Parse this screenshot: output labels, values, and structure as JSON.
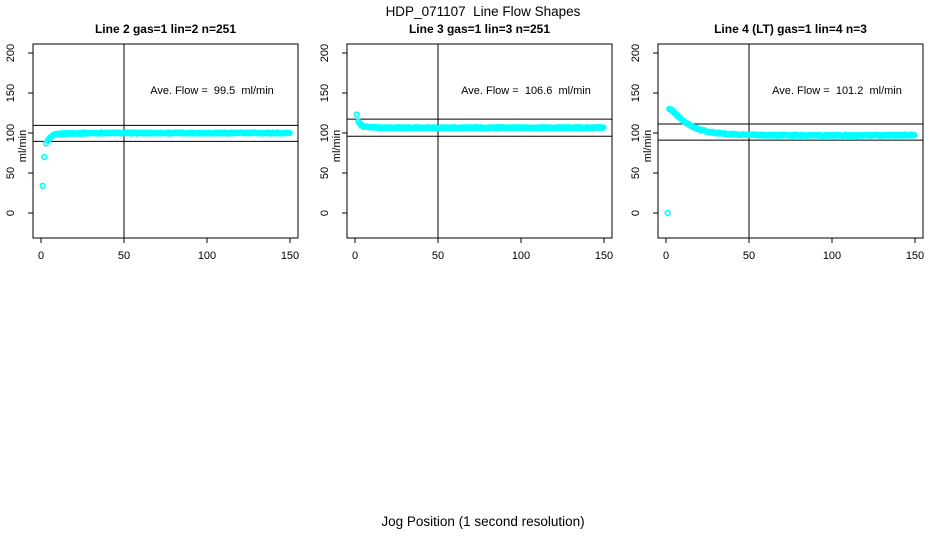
{
  "title": "HDP_071107  Line Flow Shapes",
  "xlabel": "Jog Position (1 second resolution)",
  "colors": {
    "points": "#00ffff",
    "axis": "#000000",
    "background": "#ffffff"
  },
  "chart_data": [
    {
      "type": "scatter",
      "title": "Line 2 gas=1 lin=2 n=251",
      "annotation": "Ave. Flow =  99.5  ml/min",
      "ave_flow_ml_min": 99.5,
      "ylabel": "ml/min",
      "xlim": [
        0,
        150
      ],
      "ylim": [
        0,
        200
      ],
      "xticks": [
        0,
        50,
        100,
        150
      ],
      "yticks": [
        0,
        50,
        100,
        150,
        200
      ],
      "ref_vline_x": 50,
      "ref_hlines": [
        109.5,
        89.6
      ],
      "outlier_points": [
        [
          1,
          34
        ],
        [
          2,
          70
        ],
        [
          3,
          87
        ]
      ],
      "samples": [
        [
          4,
          90
        ],
        [
          5,
          93
        ],
        [
          6,
          95
        ],
        [
          7,
          96.5
        ],
        [
          8,
          97.5
        ],
        [
          10,
          98.5
        ],
        [
          12,
          99
        ],
        [
          15,
          99.3
        ],
        [
          20,
          99.6
        ],
        [
          25,
          99.8
        ],
        [
          30,
          99.9
        ],
        [
          40,
          100
        ],
        [
          60,
          100
        ],
        [
          80,
          100
        ],
        [
          100,
          100
        ],
        [
          120,
          100
        ],
        [
          150,
          100
        ]
      ]
    },
    {
      "type": "scatter",
      "title": "Line 3 gas=1 lin=3 n=251",
      "annotation": "Ave. Flow =  106.6  ml/min",
      "ave_flow_ml_min": 106.6,
      "ylabel": "ml/min",
      "xlim": [
        0,
        150
      ],
      "ylim": [
        0,
        200
      ],
      "xticks": [
        0,
        50,
        100,
        150
      ],
      "yticks": [
        0,
        50,
        100,
        150,
        200
      ],
      "ref_vline_x": 50,
      "ref_hlines": [
        117.3,
        95.9
      ],
      "outlier_points": [
        [
          1,
          123
        ]
      ],
      "samples": [
        [
          2,
          115
        ],
        [
          3,
          111.5
        ],
        [
          4,
          109.5
        ],
        [
          5,
          108.5
        ],
        [
          6,
          108
        ],
        [
          8,
          107.3
        ],
        [
          10,
          107
        ],
        [
          12,
          106.9
        ],
        [
          15,
          106.8
        ],
        [
          20,
          106.7
        ],
        [
          30,
          106.6
        ],
        [
          50,
          106.6
        ],
        [
          80,
          106.6
        ],
        [
          100,
          106.6
        ],
        [
          120,
          106.6
        ],
        [
          150,
          106.6
        ]
      ]
    },
    {
      "type": "scatter",
      "title": "Line 4 (LT) gas=1 lin=4 n=3",
      "annotation": "Ave. Flow =  101.2  ml/min",
      "ave_flow_ml_min": 101.2,
      "ylabel": "ml/min",
      "xlim": [
        0,
        150
      ],
      "ylim": [
        0,
        200
      ],
      "xticks": [
        0,
        50,
        100,
        150
      ],
      "yticks": [
        0,
        50,
        100,
        150,
        200
      ],
      "ref_vline_x": 50,
      "ref_hlines": [
        111.3,
        91.1
      ],
      "outlier_points": [
        [
          1,
          0
        ]
      ],
      "samples": [
        [
          2,
          130
        ],
        [
          3,
          129
        ],
        [
          4,
          127.5
        ],
        [
          5,
          125.5
        ],
        [
          6,
          123.5
        ],
        [
          8,
          119.5
        ],
        [
          10,
          116
        ],
        [
          12,
          112.8
        ],
        [
          15,
          109
        ],
        [
          18,
          106
        ],
        [
          20,
          104.5
        ],
        [
          25,
          101.8
        ],
        [
          30,
          100.2
        ],
        [
          35,
          99.2
        ],
        [
          40,
          98.5
        ],
        [
          45,
          98
        ],
        [
          50,
          97.8
        ],
        [
          60,
          97.4
        ],
        [
          70,
          97.2
        ],
        [
          80,
          97.1
        ],
        [
          100,
          97
        ],
        [
          120,
          97
        ],
        [
          150,
          97.5
        ]
      ]
    }
  ]
}
